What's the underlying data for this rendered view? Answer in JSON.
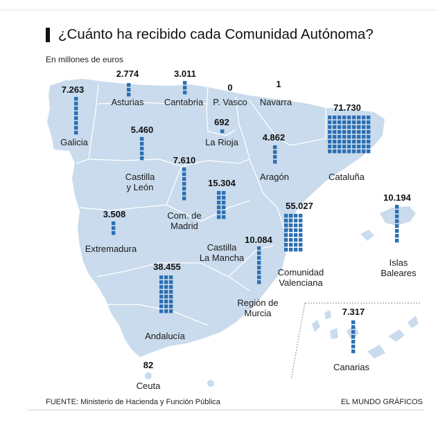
{
  "title": "¿Cuánto ha recibido cada Comunidad Autónoma?",
  "subtitle": "En millones de euros",
  "footer": {
    "source": "FUENTE: Ministerio de Hacienda y Función Pública",
    "credit": "EL MUNDO GRÁFICOS"
  },
  "colors": {
    "land": "#c9dbec",
    "border": "#ffffff",
    "square": "#2c6fb3",
    "text": "#1a1a1a"
  },
  "chart_data": {
    "type": "pictogram-map",
    "unit": "millones de euros",
    "regions": [
      {
        "key": "galicia",
        "name": "Galicia",
        "value": 7263,
        "value_label": "7.263"
      },
      {
        "key": "asturias",
        "name": "Asturias",
        "value": 2774,
        "value_label": "2.774"
      },
      {
        "key": "cantabria",
        "name": "Cantabria",
        "value": 3011,
        "value_label": "3.011"
      },
      {
        "key": "pvasco",
        "name": "P. Vasco",
        "value": 0,
        "value_label": "0"
      },
      {
        "key": "navarra",
        "name": "Navarra",
        "value": 1,
        "value_label": "1"
      },
      {
        "key": "cataluna",
        "name": "Cataluña",
        "value": 71730,
        "value_label": "71.730"
      },
      {
        "key": "larioja",
        "name": "La Rioja",
        "value": 692,
        "value_label": "692"
      },
      {
        "key": "aragon",
        "name": "Aragón",
        "value": 4862,
        "value_label": "4.862"
      },
      {
        "key": "castillaleon",
        "name": "Castilla y León",
        "name_lines": [
          "Castilla",
          "y León"
        ],
        "value": 5460,
        "value_label": "5.460"
      },
      {
        "key": "madrid",
        "name": "Com. de Madrid",
        "name_lines": [
          "Com. de",
          "Madrid"
        ],
        "value": 7610,
        "value_label": "7.610"
      },
      {
        "key": "clm",
        "name": "Castilla La Mancha",
        "name_lines": [
          "Castilla",
          "La Mancha"
        ],
        "value": 15304,
        "value_label": "15.304"
      },
      {
        "key": "valencia",
        "name": "Comunidad Valenciana",
        "name_lines": [
          "Comunidad",
          "Valenciana"
        ],
        "value": 55027,
        "value_label": "55.027"
      },
      {
        "key": "baleares",
        "name": "Islas Baleares",
        "name_lines": [
          "Islas",
          "Baleares"
        ],
        "value": 10194,
        "value_label": "10.194"
      },
      {
        "key": "extremadura",
        "name": "Extremadura",
        "value": 3508,
        "value_label": "3.508"
      },
      {
        "key": "murcia",
        "name": "Región de Murcia",
        "name_lines": [
          "Región de",
          "Murcia"
        ],
        "value": 10084,
        "value_label": "10.084"
      },
      {
        "key": "andalucia",
        "name": "Andalucía",
        "value": 38455,
        "value_label": "38.455"
      },
      {
        "key": "canarias",
        "name": "Canarias",
        "value": 7317,
        "value_label": "7.317"
      },
      {
        "key": "ceuta",
        "name": "Ceuta",
        "value": 82,
        "value_label": "82"
      }
    ]
  }
}
